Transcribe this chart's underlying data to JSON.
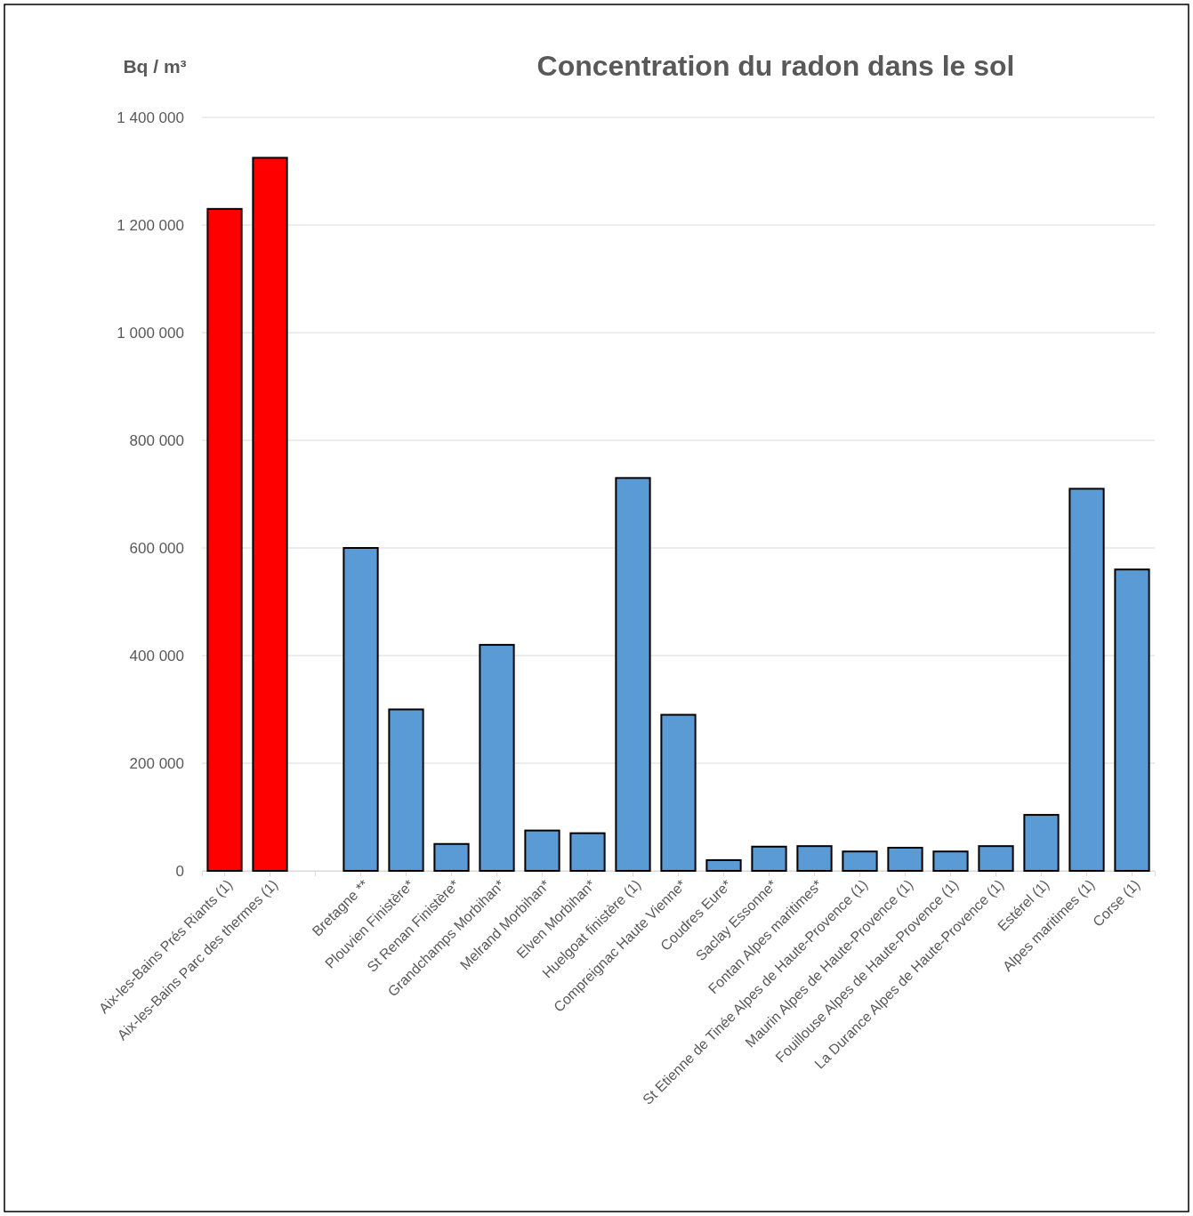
{
  "chart_data": {
    "type": "bar",
    "title": "Concentration du radon dans le sol",
    "ylabel": "Bq / m³",
    "categories": [
      "Aix-les-Bains Prés Riants (1)",
      "Aix-les-Bains Parc des thermes (1)",
      null,
      "Bretagne **",
      "Plouvien Finistère*",
      "St Renan Finistère*",
      "Grandchamps Morbihan*",
      "Melrand Morbihan*",
      "Elven Morbihan*",
      "Huelgoat finistère (1)",
      "Compreignac Haute Vienne*",
      "Coudres Eure*",
      "Saclay Essonne*",
      "Fontan Alpes maritimes*",
      "St Etienne de Tinée Alpes de Haute-Provence (1)",
      "Maurin Alpes de Haute-Provence (1)",
      "Fouillouse Alpes de Haute-Provence (1)",
      "La Durance Alpes de Haute-Provence (1)",
      "Estérel (1)",
      "Alpes maritimes (1)",
      "Corse (1)"
    ],
    "values": [
      1230000,
      1325000,
      null,
      600000,
      300000,
      50000,
      420000,
      75000,
      70000,
      730000,
      290000,
      20000,
      45000,
      46000,
      36000,
      43000,
      36000,
      46000,
      104000,
      710000,
      560000
    ],
    "colors": [
      "#ff0000",
      "#ff0000",
      null,
      "#5b9bd5",
      "#5b9bd5",
      "#5b9bd5",
      "#5b9bd5",
      "#5b9bd5",
      "#5b9bd5",
      "#5b9bd5",
      "#5b9bd5",
      "#5b9bd5",
      "#5b9bd5",
      "#5b9bd5",
      "#5b9bd5",
      "#5b9bd5",
      "#5b9bd5",
      "#5b9bd5",
      "#5b9bd5",
      "#5b9bd5",
      "#5b9bd5"
    ],
    "ylim": [
      0,
      1400000
    ],
    "yticks": [
      0,
      {
        "value": 200000,
        "label": "200 000"
      },
      {
        "value": 400000,
        "label": "400 000"
      },
      {
        "value": 600000,
        "label": "600 000"
      },
      {
        "value": 800000,
        "label": "800 000"
      },
      {
        "value": 1000000,
        "label": "1 000 000"
      },
      {
        "value": 1200000,
        "label": "1 200 000"
      },
      {
        "value": 1400000,
        "label": "1 400 000"
      }
    ],
    "grid": "y"
  }
}
